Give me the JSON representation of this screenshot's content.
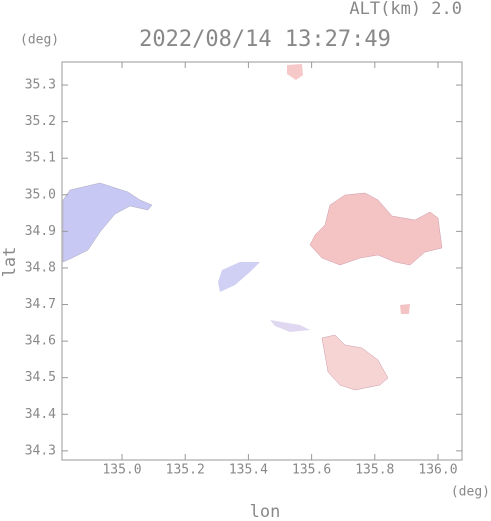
{
  "chart_data": {
    "type": "map",
    "title": "2022/08/14 13:27:49",
    "subtitle": "ALT(km)  2.0",
    "y_unit": "(deg)",
    "x_unit": "(deg)",
    "xlabel": "lon",
    "ylabel": "lat",
    "xlim": [
      134.81,
      136.076
    ],
    "ylim": [
      34.275,
      35.363
    ],
    "xticks": [
      {
        "value": 135,
        "label": "135.0"
      },
      135.2,
      135.4,
      135.6,
      135.8,
      {
        "value": 136,
        "label": "136.0"
      }
    ],
    "yticks": [
      34.3,
      34.4,
      34.5,
      34.6,
      34.7,
      34.8,
      34.9,
      {
        "value": 35,
        "label": "35.0"
      },
      35.1,
      35.2,
      35.3
    ]
  }
}
